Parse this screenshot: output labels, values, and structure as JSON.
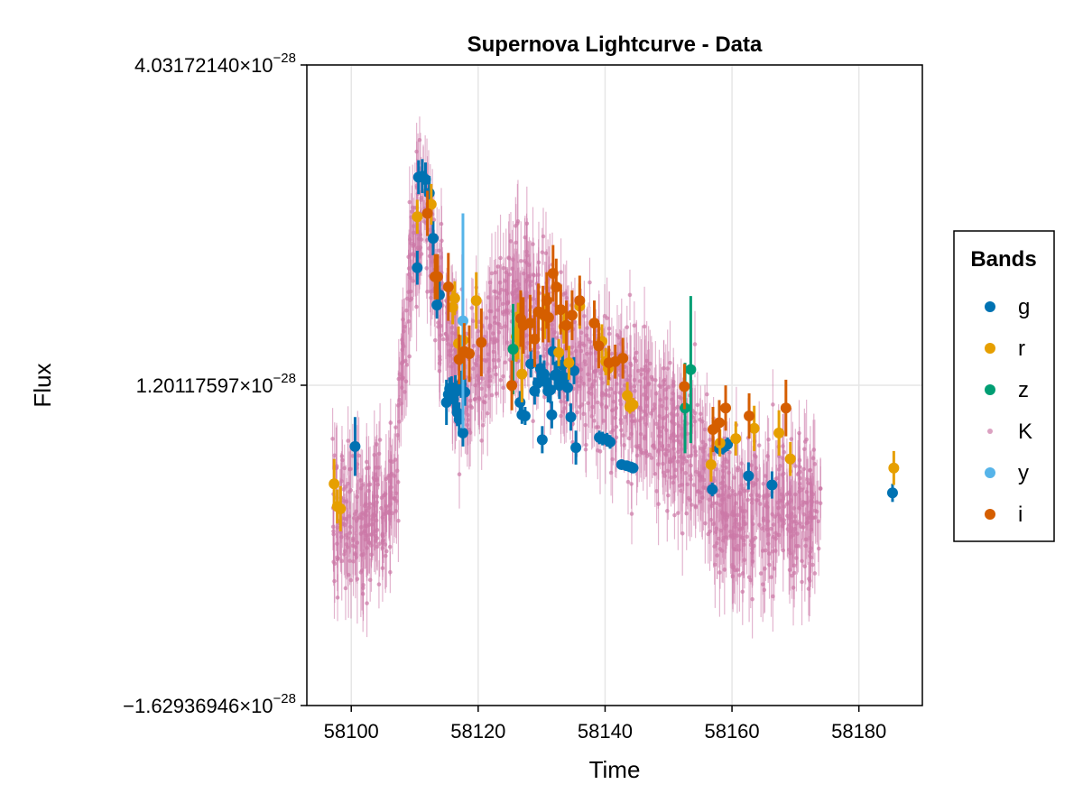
{
  "chart_data": {
    "type": "scatter",
    "title": "Supernova Lightcurve - Data",
    "xlabel": "Time",
    "ylabel": "Flux",
    "xlim": [
      58093,
      58190
    ],
    "ylim": [
      -1.62936946e-28,
      4.0317214e-28
    ],
    "x_ticks": [
      58100,
      58120,
      58140,
      58160,
      58180
    ],
    "y_ticks": [
      {
        "value": 4.0317214e-28,
        "label": "4.03172140×10",
        "exp": "−28"
      },
      {
        "value": 1.20117597e-28,
        "label": "1.20117597×10",
        "exp": "−28"
      },
      {
        "value": -1.62936946e-28,
        "label": "−1.62936946×10",
        "exp": "−28"
      }
    ],
    "grid": true,
    "legend_title": "Bands",
    "legend_placement": "right",
    "series": [
      {
        "name": "g",
        "color": "#0072B2",
        "marker": "large",
        "points": [
          [
            58100.6,
            6.6e-29,
            2.6e-29
          ],
          [
            58110.4,
            2.24e-28,
            1.5e-29
          ],
          [
            58110.6,
            3.04e-28,
            1.5e-29
          ],
          [
            58111.2,
            3.05e-28,
            1.5e-29
          ],
          [
            58111.7,
            3.02e-28,
            1.5e-29
          ],
          [
            58112.3,
            2.9e-28,
            1.5e-29
          ],
          [
            58112.9,
            2.5e-28,
            1.5e-29
          ],
          [
            58113.5,
            1.91e-28,
            1.2e-29
          ],
          [
            58113.9,
            2e-28,
            1.2e-29
          ],
          [
            58115.0,
            1.05e-28,
            2e-29
          ],
          [
            58115.3,
            1.12e-28,
            1e-29
          ],
          [
            58115.5,
            1.17e-28,
            1e-29
          ],
          [
            58115.8,
            1.18e-28,
            1e-29
          ],
          [
            58116.1,
            1.08e-28,
            1.2e-29
          ],
          [
            58116.4,
            1.14e-28,
            1.5e-29
          ],
          [
            58116.7,
            9.6e-29,
            1.2e-29
          ],
          [
            58117.0,
            9e-29,
            1.5e-29
          ],
          [
            58117.3,
            1.21e-28,
            1.2e-29
          ],
          [
            58117.6,
            7.8e-29,
            1.2e-29
          ],
          [
            58117.9,
            1.14e-28,
            1.2e-29
          ],
          [
            58126.6,
            1.05e-28,
            1e-29
          ],
          [
            58126.9,
            9.4e-29,
            8e-30
          ],
          [
            58127.4,
            9.3e-29,
            8e-30
          ],
          [
            58128.3,
            1.39e-28,
            1.2e-29
          ],
          [
            58128.9,
            1.15e-28,
            1.2e-29
          ],
          [
            58129.4,
            1.22e-28,
            1.2e-29
          ],
          [
            58129.8,
            1.35e-28,
            1.2e-29
          ],
          [
            58130.1,
            7.2e-29,
            1.2e-29
          ],
          [
            58130.4,
            1.3e-28,
            1.2e-29
          ],
          [
            58130.7,
            1.23e-28,
            1e-29
          ],
          [
            58131.0,
            1.15e-28,
            1e-29
          ],
          [
            58131.4,
            1.16e-28,
            1.2e-29
          ],
          [
            58131.6,
            9.4e-29,
            1.2e-29
          ],
          [
            58131.8,
            1.5e-28,
            1.2e-29
          ],
          [
            58132.1,
            1.29e-28,
            1.2e-29
          ],
          [
            58132.4,
            1.3e-28,
            1.2e-29
          ],
          [
            58132.8,
            1.2e-28,
            1.2e-29
          ],
          [
            58133.3,
            1.38e-28,
            1.2e-29
          ],
          [
            58133.6,
            1.27e-28,
            1.2e-29
          ],
          [
            58134.1,
            1.18e-28,
            1.2e-29
          ],
          [
            58134.6,
            9.2e-29,
            1.2e-29
          ],
          [
            58135.1,
            1.33e-28,
            1.2e-29
          ],
          [
            58135.4,
            6.5e-29,
            1.5e-29
          ],
          [
            58139.1,
            7.4e-29,
            6e-30
          ],
          [
            58139.6,
            7.3e-29,
            6e-30
          ],
          [
            58140.3,
            7.2e-29,
            6e-30
          ],
          [
            58140.8,
            7e-29,
            6e-30
          ],
          [
            58142.6,
            5e-29,
            4e-30
          ],
          [
            58143.4,
            4.9e-29,
            4e-30
          ],
          [
            58144.0,
            4.8e-29,
            4e-30
          ],
          [
            58144.4,
            4.7e-29,
            4e-30
          ],
          [
            58156.9,
            2.8e-29,
            6e-30
          ],
          [
            58158.0,
            6.4e-29,
            6e-30
          ],
          [
            58158.6,
            6.5e-29,
            6e-30
          ],
          [
            58159.3,
            6.8e-29,
            6e-30
          ],
          [
            58162.6,
            4e-29,
            1.2e-29
          ],
          [
            58166.3,
            3.2e-29,
            1.2e-29
          ],
          [
            58185.3,
            2.5e-29,
            8e-30
          ]
        ]
      },
      {
        "name": "r",
        "color": "#E69F00",
        "marker": "large",
        "points": [
          [
            58097.3,
            3.3e-29,
            2.2e-29
          ],
          [
            58097.8,
            1.3e-29,
            1.5e-29
          ],
          [
            58098.3,
            1.1e-29,
            2e-29
          ],
          [
            58110.4,
            2.69e-28,
            1.5e-29
          ],
          [
            58112.6,
            2.8e-28,
            1.8e-29
          ],
          [
            58116.0,
            1.89e-28,
            1.5e-29
          ],
          [
            58116.3,
            1.97e-28,
            1.5e-29
          ],
          [
            58116.9,
            1.57e-28,
            1.5e-29
          ],
          [
            58117.6,
            1.6e-28,
            2e-29
          ],
          [
            58119.7,
            1.95e-28,
            2.5e-29
          ],
          [
            58126.0,
            1.63e-28,
            2.2e-29
          ],
          [
            58126.3,
            1.68e-28,
            2.5e-29
          ],
          [
            58126.9,
            1.3e-28,
            2.5e-29
          ],
          [
            58130.5,
            1.81e-28,
            2e-29
          ],
          [
            58132.7,
            1.49e-28,
            1.2e-29
          ],
          [
            58133.5,
            1.72e-28,
            1.5e-29
          ],
          [
            58134.3,
            1.4e-28,
            1.5e-29
          ],
          [
            58136.0,
            1.9e-28,
            2e-29
          ],
          [
            58139.5,
            1.59e-28,
            1.5e-29
          ],
          [
            58140.1,
            1.41e-28,
            1.2e-29
          ],
          [
            58140.5,
            1.35e-28,
            1.5e-29
          ],
          [
            58143.5,
            1.11e-28,
            1.2e-29
          ],
          [
            58143.9,
            1.01e-28,
            6e-30
          ],
          [
            58144.4,
            1.03e-28,
            6e-30
          ],
          [
            58156.7,
            5e-29,
            1.5e-29
          ],
          [
            58158.1,
            6.9e-29,
            1.2e-29
          ],
          [
            58160.6,
            7.3e-29,
            1.5e-29
          ],
          [
            58163.5,
            8.2e-29,
            2e-29
          ],
          [
            58167.4,
            7.8e-29,
            2e-29
          ],
          [
            58169.2,
            5.5e-29,
            1.5e-29
          ],
          [
            58185.5,
            4.7e-29,
            1.5e-29
          ]
        ]
      },
      {
        "name": "z",
        "color": "#009E73",
        "marker": "large",
        "points": [
          [
            58125.5,
            1.52e-28,
            4e-29
          ],
          [
            58152.6,
            1e-28,
            4e-29
          ],
          [
            58153.5,
            1.34e-28,
            6.5e-29
          ]
        ]
      },
      {
        "name": "K",
        "color": "#CC79A7",
        "marker": "small",
        "generated": true
      },
      {
        "name": "y",
        "color": "#56B4E9",
        "marker": "large",
        "points": [
          [
            58117.6,
            1.77e-28,
            9.5e-29
          ]
        ]
      },
      {
        "name": "i",
        "color": "#D55E00",
        "marker": "large",
        "points": [
          [
            58112.0,
            2.72e-28,
            2e-29
          ],
          [
            58113.2,
            2.16e-28,
            2e-29
          ],
          [
            58113.6,
            2.16e-28,
            2e-29
          ],
          [
            58115.3,
            2.07e-28,
            3e-29
          ],
          [
            58117.0,
            1.43e-28,
            2.2e-29
          ],
          [
            58117.8,
            1.5e-28,
            2.5e-29
          ],
          [
            58118.6,
            1.48e-28,
            2.5e-29
          ],
          [
            58120.5,
            1.58e-28,
            3e-29
          ],
          [
            58125.3,
            1.2e-28,
            2.2e-29
          ],
          [
            58126.7,
            1.79e-28,
            2.5e-29
          ],
          [
            58127.1,
            1.73e-28,
            2.5e-29
          ],
          [
            58128.2,
            1.75e-28,
            2.5e-29
          ],
          [
            58128.9,
            1.61e-28,
            2.5e-29
          ],
          [
            58129.5,
            1.85e-28,
            2.5e-29
          ],
          [
            58130.2,
            1.83e-28,
            2.5e-29
          ],
          [
            58130.8,
            1.95e-28,
            2.5e-29
          ],
          [
            58131.1,
            1.8e-28,
            2.2e-29
          ],
          [
            58131.8,
            2.19e-28,
            2.5e-29
          ],
          [
            58132.3,
            2.07e-28,
            2.5e-29
          ],
          [
            58133.0,
            1.87e-28,
            2.2e-29
          ],
          [
            58133.9,
            1.73e-28,
            2.2e-29
          ],
          [
            58134.8,
            1.82e-28,
            2.2e-29
          ],
          [
            58136.0,
            1.95e-28,
            2.2e-29
          ],
          [
            58138.3,
            1.75e-28,
            2e-29
          ],
          [
            58139.0,
            1.55e-28,
            2e-29
          ],
          [
            58140.6,
            1.4e-28,
            1.5e-29
          ],
          [
            58141.6,
            1.41e-28,
            1.5e-29
          ],
          [
            58142.8,
            1.44e-28,
            1.8e-29
          ],
          [
            58152.5,
            1.19e-28,
            2e-29
          ],
          [
            58157.0,
            8.1e-29,
            2e-29
          ],
          [
            58158.0,
            8.7e-29,
            2e-29
          ],
          [
            58159.0,
            1e-28,
            2e-29
          ],
          [
            58162.7,
            9.3e-29,
            2e-29
          ],
          [
            58168.5,
            1e-28,
            2.5e-29
          ]
        ]
      }
    ]
  }
}
